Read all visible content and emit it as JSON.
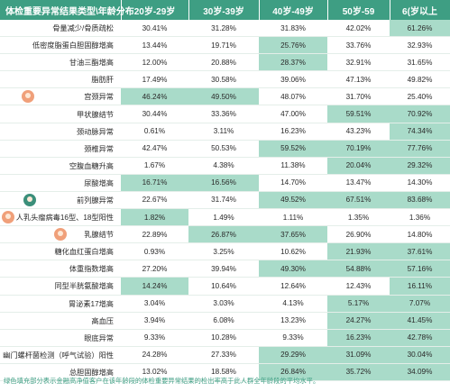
{
  "header": [
    "体检重要异常结果类型\\年龄分布",
    "20岁-29岁",
    "30岁-39岁",
    "40岁-49岁",
    "50岁-59",
    "6(岁以上"
  ],
  "rows": [
    {
      "label": "骨量减少/骨质疏松",
      "values": [
        "30.41%",
        "31.28%",
        "31.83%",
        "42.02%",
        "61.26%"
      ],
      "hl": [
        false,
        false,
        false,
        false,
        true
      ],
      "icon": ""
    },
    {
      "label": "低密度脂蛋白胆固醇增高",
      "values": [
        "13.44%",
        "19.71%",
        "25.76%",
        "33.76%",
        "32.93%"
      ],
      "hl": [
        false,
        false,
        true,
        false,
        false
      ],
      "icon": ""
    },
    {
      "label": "甘油三酯增高",
      "values": [
        "12.00%",
        "20.88%",
        "28.37%",
        "32.91%",
        "31.65%"
      ],
      "hl": [
        false,
        false,
        true,
        false,
        false
      ],
      "icon": ""
    },
    {
      "label": "脂肪肝",
      "values": [
        "17.49%",
        "30.58%",
        "39.06%",
        "47.13%",
        "49.82%"
      ],
      "hl": [
        false,
        false,
        false,
        false,
        false
      ],
      "icon": ""
    },
    {
      "label": "宫颈异常",
      "values": [
        "46.24%",
        "49.50%",
        "48.07%",
        "31.70%",
        "25.40%"
      ],
      "hl": [
        true,
        true,
        false,
        false,
        false
      ],
      "icon": "female"
    },
    {
      "label": "甲状腺结节",
      "values": [
        "30.44%",
        "33.36%",
        "47.00%",
        "59.51%",
        "70.92%"
      ],
      "hl": [
        false,
        false,
        false,
        true,
        true
      ],
      "icon": ""
    },
    {
      "label": "颈动脉异常",
      "values": [
        "0.61%",
        "3.11%",
        "16.23%",
        "43.23%",
        "74.34%"
      ],
      "hl": [
        false,
        false,
        false,
        false,
        true
      ],
      "icon": ""
    },
    {
      "label": "颈椎异常",
      "values": [
        "42.47%",
        "50.53%",
        "59.52%",
        "70.19%",
        "77.76%"
      ],
      "hl": [
        false,
        false,
        true,
        true,
        true
      ],
      "icon": ""
    },
    {
      "label": "空腹血糖升高",
      "values": [
        "1.67%",
        "4.38%",
        "11.38%",
        "20.04%",
        "29.32%"
      ],
      "hl": [
        false,
        false,
        false,
        true,
        true
      ],
      "icon": ""
    },
    {
      "label": "尿酸增高",
      "values": [
        "16.71%",
        "16.56%",
        "14.70%",
        "13.47%",
        "14.30%"
      ],
      "hl": [
        true,
        true,
        false,
        false,
        false
      ],
      "icon": ""
    },
    {
      "label": "前列腺异常",
      "values": [
        "22.67%",
        "31.74%",
        "49.52%",
        "67.51%",
        "83.68%"
      ],
      "hl": [
        false,
        false,
        true,
        true,
        true
      ],
      "icon": "male"
    },
    {
      "label": "人乳头瘤病毒16型、18型阳性",
      "values": [
        "1.82%",
        "1.49%",
        "1.11%",
        "1.35%",
        "1.36%"
      ],
      "hl": [
        true,
        false,
        false,
        false,
        false
      ],
      "icon": "female"
    },
    {
      "label": "乳腺结节",
      "values": [
        "22.89%",
        "26.87%",
        "37.65%",
        "26.90%",
        "14.80%"
      ],
      "hl": [
        false,
        true,
        true,
        false,
        false
      ],
      "icon": "female"
    },
    {
      "label": "糖化血红蛋白增高",
      "values": [
        "0.93%",
        "3.25%",
        "10.62%",
        "21.93%",
        "37.61%"
      ],
      "hl": [
        false,
        false,
        false,
        true,
        true
      ],
      "icon": ""
    },
    {
      "label": "体重指数增高",
      "values": [
        "27.20%",
        "39.94%",
        "49.30%",
        "54.88%",
        "57.16%"
      ],
      "hl": [
        false,
        false,
        true,
        true,
        true
      ],
      "icon": ""
    },
    {
      "label": "同型半胱氨酸增高",
      "values": [
        "14.24%",
        "10.64%",
        "12.64%",
        "12.43%",
        "16.11%"
      ],
      "hl": [
        true,
        false,
        false,
        false,
        true
      ],
      "icon": ""
    },
    {
      "label": "胃泌素17增高",
      "values": [
        "3.04%",
        "3.03%",
        "4.13%",
        "5.17%",
        "7.07%"
      ],
      "hl": [
        false,
        false,
        false,
        true,
        true
      ],
      "icon": ""
    },
    {
      "label": "高血压",
      "values": [
        "3.94%",
        "6.08%",
        "13.23%",
        "24.27%",
        "41.45%"
      ],
      "hl": [
        false,
        false,
        false,
        true,
        true
      ],
      "icon": ""
    },
    {
      "label": "眼底异常",
      "values": [
        "9.33%",
        "10.28%",
        "9.33%",
        "16.23%",
        "42.78%"
      ],
      "hl": [
        false,
        false,
        false,
        true,
        true
      ],
      "icon": ""
    },
    {
      "label": "幽门螺杆菌检测（呼气试验）阳性",
      "values": [
        "24.28%",
        "27.33%",
        "29.29%",
        "31.09%",
        "30.04%"
      ],
      "hl": [
        false,
        false,
        true,
        true,
        true
      ],
      "icon": ""
    },
    {
      "label": "总胆固醇增高",
      "values": [
        "13.02%",
        "18.58%",
        "26.84%",
        "35.72%",
        "34.09%"
      ],
      "hl": [
        false,
        false,
        true,
        true,
        true
      ],
      "icon": ""
    }
  ],
  "footnote": "绿色填充部分表示金融高净值客户在该年龄段的体检重要异常结果的检出率高于此人群全年龄段的平均水平。"
}
